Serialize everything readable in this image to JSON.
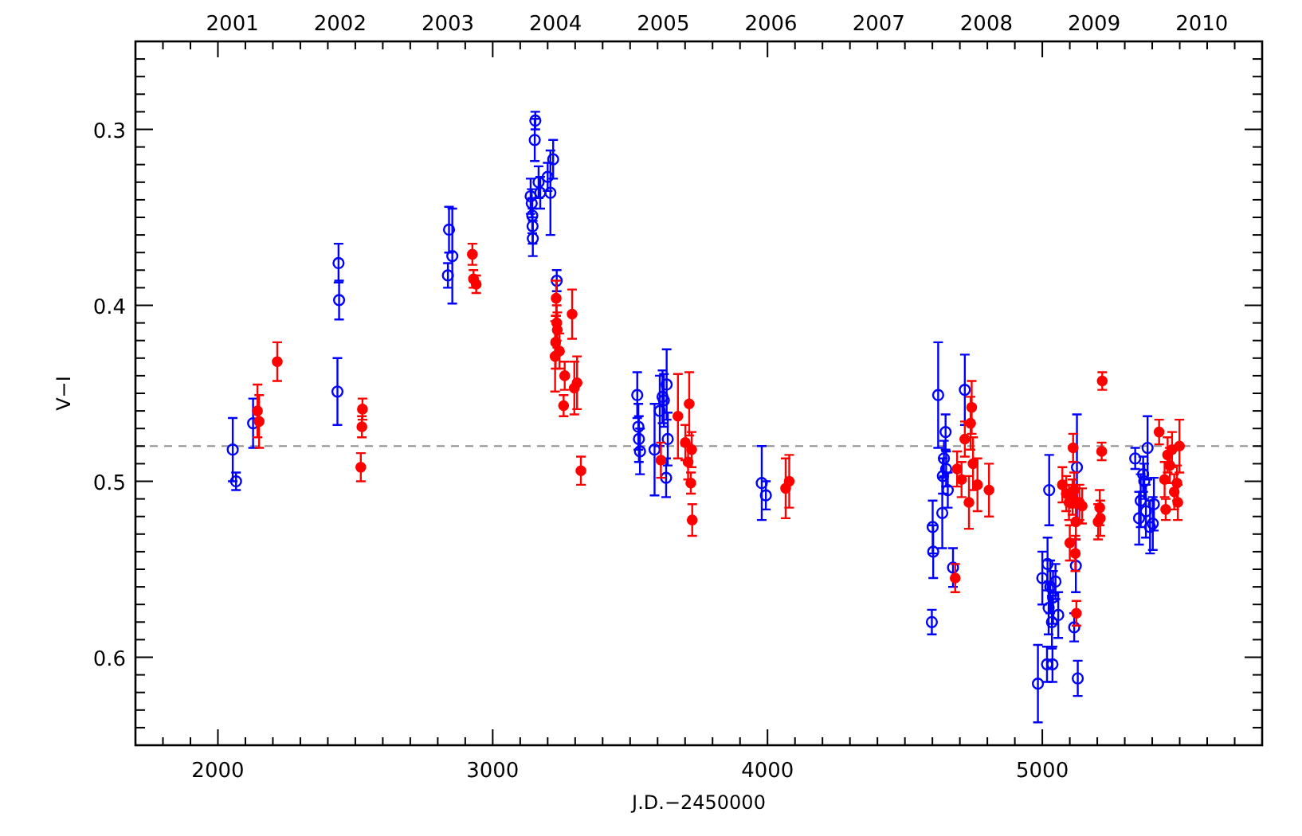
{
  "chart_data": {
    "type": "scatter",
    "xlabel": "J.D.−2450000",
    "ylabel": "V−I",
    "xlim": [
      1700,
      5800
    ],
    "ylim": [
      0.65,
      0.25
    ],
    "xticks": [
      {
        "value": 1700,
        "label": null
      },
      {
        "value": 1800,
        "label": null
      },
      {
        "value": 1900,
        "label": null
      },
      2000,
      {
        "value": 2100,
        "label": null
      },
      {
        "value": 2200,
        "label": null
      },
      {
        "value": 2300,
        "label": null
      },
      {
        "value": 2400,
        "label": null
      },
      {
        "value": 2500,
        "label": null
      },
      {
        "value": 2600,
        "label": null
      },
      {
        "value": 2700,
        "label": null
      },
      {
        "value": 2800,
        "label": null
      },
      {
        "value": 2900,
        "label": null
      },
      3000,
      {
        "value": 3100,
        "label": null
      },
      {
        "value": 3200,
        "label": null
      },
      {
        "value": 3300,
        "label": null
      },
      {
        "value": 3400,
        "label": null
      },
      {
        "value": 3500,
        "label": null
      },
      {
        "value": 3600,
        "label": null
      },
      {
        "value": 3700,
        "label": null
      },
      {
        "value": 3800,
        "label": null
      },
      {
        "value": 3900,
        "label": null
      },
      4000,
      {
        "value": 4100,
        "label": null
      },
      {
        "value": 4200,
        "label": null
      },
      {
        "value": 4300,
        "label": null
      },
      {
        "value": 4400,
        "label": null
      },
      {
        "value": 4500,
        "label": null
      },
      {
        "value": 4600,
        "label": null
      },
      {
        "value": 4700,
        "label": null
      },
      {
        "value": 4800,
        "label": null
      },
      {
        "value": 4900,
        "label": null
      },
      5000,
      {
        "value": 5100,
        "label": null
      },
      {
        "value": 5200,
        "label": null
      },
      {
        "value": 5300,
        "label": null
      },
      {
        "value": 5400,
        "label": null
      },
      {
        "value": 5500,
        "label": null
      },
      {
        "value": 5600,
        "label": null
      },
      {
        "value": 5700,
        "label": null
      }
    ],
    "yticks": [
      {
        "value": 0.26,
        "label": null
      },
      {
        "value": 0.27,
        "label": null
      },
      {
        "value": 0.28,
        "label": null
      },
      {
        "value": 0.29,
        "label": null
      },
      0.3,
      {
        "value": 0.31,
        "label": null
      },
      {
        "value": 0.32,
        "label": null
      },
      {
        "value": 0.33,
        "label": null
      },
      {
        "value": 0.34,
        "label": null
      },
      {
        "value": 0.35,
        "label": null
      },
      {
        "value": 0.36,
        "label": null
      },
      {
        "value": 0.37,
        "label": null
      },
      {
        "value": 0.38,
        "label": null
      },
      {
        "value": 0.39,
        "label": null
      },
      0.4,
      {
        "value": 0.41,
        "label": null
      },
      {
        "value": 0.42,
        "label": null
      },
      {
        "value": 0.43,
        "label": null
      },
      {
        "value": 0.44,
        "label": null
      },
      {
        "value": 0.45,
        "label": null
      },
      {
        "value": 0.46,
        "label": null
      },
      {
        "value": 0.47,
        "label": null
      },
      {
        "value": 0.48,
        "label": null
      },
      {
        "value": 0.49,
        "label": null
      },
      0.5,
      {
        "value": 0.51,
        "label": null
      },
      {
        "value": 0.52,
        "label": null
      },
      {
        "value": 0.53,
        "label": null
      },
      {
        "value": 0.54,
        "label": null
      },
      {
        "value": 0.55,
        "label": null
      },
      {
        "value": 0.56,
        "label": null
      },
      {
        "value": 0.57,
        "label": null
      },
      {
        "value": 0.58,
        "label": null
      },
      {
        "value": 0.59,
        "label": null
      },
      0.6,
      {
        "value": 0.61,
        "label": null
      },
      {
        "value": 0.62,
        "label": null
      },
      {
        "value": 0.63,
        "label": null
      },
      {
        "value": 0.64,
        "label": null
      }
    ],
    "x2lim": [
      2000.1,
      2010.56
    ],
    "x2ticks": [
      2001,
      2002,
      2003,
      2004,
      2005,
      2006,
      2007,
      2008,
      2009,
      2010
    ],
    "grid": false,
    "ref_lines": [
      {
        "axis": "y",
        "value": 0.48,
        "color": "#909090",
        "line_style": "dashed"
      }
    ],
    "series": [
      {
        "color": "#0000ff",
        "marker": "circle",
        "x": [
          2054,
          2066,
          2128,
          2435,
          2439,
          2441,
          2837,
          2841,
          2853,
          3138,
          3142,
          3144,
          3145,
          3146,
          3153,
          3155,
          3167,
          3173,
          3200,
          3210,
          3220,
          3233,
          3526,
          3530,
          3532,
          3536,
          3589,
          3608,
          3618,
          3623,
          3633,
          3637,
          3631,
          3979,
          3994,
          4598,
          4601,
          4603,
          4621,
          4636,
          4638,
          4642,
          4648,
          4650,
          4656,
          4675,
          4718,
          4984,
          5000,
          5019,
          5017,
          5023,
          5025,
          5029,
          5035,
          5037,
          5039,
          5048,
          5058,
          5116,
          5122,
          5126,
          5129,
          5338,
          5352,
          5358,
          5367,
          5371,
          5377,
          5383,
          5392,
          5402,
          5406
        ],
        "values": [
          0.482,
          0.5,
          0.467,
          0.449,
          0.376,
          0.397,
          0.383,
          0.357,
          0.372,
          0.338,
          0.342,
          0.349,
          0.355,
          0.362,
          0.306,
          0.295,
          0.33,
          0.336,
          0.327,
          0.336,
          0.317,
          0.386,
          0.451,
          0.469,
          0.476,
          0.483,
          0.482,
          0.46,
          0.452,
          0.454,
          0.445,
          0.476,
          0.498,
          0.501,
          0.508,
          0.58,
          0.526,
          0.54,
          0.451,
          0.518,
          0.497,
          0.487,
          0.472,
          0.493,
          0.505,
          0.549,
          0.448,
          0.615,
          0.555,
          0.547,
          0.604,
          0.572,
          0.505,
          0.56,
          0.58,
          0.604,
          0.566,
          0.557,
          0.576,
          0.583,
          0.548,
          0.492,
          0.612,
          0.487,
          0.521,
          0.511,
          0.496,
          0.5,
          0.517,
          0.481,
          0.526,
          0.524,
          0.513
        ],
        "errors": [
          0.018,
          0.005,
          0.014,
          0.019,
          0.011,
          0.011,
          0.007,
          0.013,
          0.027,
          0.01,
          0.008,
          0.01,
          0.01,
          0.01,
          0.012,
          0.005,
          0.009,
          0.009,
          0.008,
          0.024,
          0.011,
          0.006,
          0.013,
          0.013,
          0.013,
          0.013,
          0.026,
          0.02,
          0.015,
          0.015,
          0.02,
          0.015,
          0.011,
          0.021,
          0.008,
          0.007,
          0.015,
          0.015,
          0.03,
          0.02,
          0.01,
          0.01,
          0.01,
          0.01,
          0.01,
          0.011,
          0.02,
          0.022,
          0.015,
          0.015,
          0.01,
          0.015,
          0.02,
          0.015,
          0.015,
          0.01,
          0.015,
          0.01,
          0.013,
          0.008,
          0.015,
          0.03,
          0.01,
          0.006,
          0.015,
          0.015,
          0.01,
          0.01,
          0.015,
          0.018,
          0.015,
          0.015,
          0.015
        ]
      },
      {
        "color": "#ff0000",
        "marker": "circle",
        "x": [
          2144,
          2150,
          2216,
          2520,
          2524,
          2526,
          2926,
          2930,
          2940,
          3227,
          3229,
          3231,
          3233,
          3235,
          3243,
          3258,
          3262,
          3289,
          3297,
          3307,
          3321,
          3612,
          3674,
          3701,
          3711,
          3715,
          3721,
          3724,
          3726,
          4066,
          4079,
          4683,
          4690,
          4706,
          4718,
          4733,
          4739,
          4743,
          4748,
          4764,
          4806,
          5073,
          5087,
          5097,
          5100,
          5110,
          5112,
          5116,
          5120,
          5122,
          5124,
          5135,
          5145,
          5203,
          5209,
          5211,
          5216,
          5218,
          5425,
          5445,
          5449,
          5456,
          5464,
          5472,
          5480,
          5490,
          5493,
          5499
        ],
        "values": [
          0.46,
          0.466,
          0.432,
          0.492,
          0.469,
          0.459,
          0.371,
          0.385,
          0.388,
          0.429,
          0.421,
          0.396,
          0.41,
          0.414,
          0.426,
          0.457,
          0.44,
          0.405,
          0.447,
          0.444,
          0.494,
          0.488,
          0.463,
          0.478,
          0.489,
          0.456,
          0.501,
          0.482,
          0.522,
          0.504,
          0.5,
          0.555,
          0.493,
          0.499,
          0.476,
          0.512,
          0.467,
          0.458,
          0.49,
          0.502,
          0.505,
          0.502,
          0.507,
          0.512,
          0.535,
          0.509,
          0.481,
          0.505,
          0.541,
          0.523,
          0.575,
          0.512,
          0.514,
          0.523,
          0.515,
          0.521,
          0.483,
          0.443,
          0.472,
          0.499,
          0.516,
          0.485,
          0.491,
          0.482,
          0.506,
          0.501,
          0.512,
          0.48
        ],
        "errors": [
          0.015,
          0.015,
          0.011,
          0.008,
          0.006,
          0.006,
          0.006,
          0.005,
          0.005,
          0.02,
          0.015,
          0.01,
          0.01,
          0.01,
          0.01,
          0.006,
          0.008,
          0.014,
          0.015,
          0.015,
          0.008,
          0.01,
          0.024,
          0.01,
          0.01,
          0.018,
          0.006,
          0.01,
          0.009,
          0.017,
          0.015,
          0.008,
          0.01,
          0.01,
          0.01,
          0.015,
          0.015,
          0.015,
          0.015,
          0.015,
          0.015,
          0.01,
          0.01,
          0.01,
          0.01,
          0.01,
          0.008,
          0.01,
          0.01,
          0.01,
          0.007,
          0.01,
          0.01,
          0.01,
          0.01,
          0.01,
          0.005,
          0.005,
          0.007,
          0.01,
          0.006,
          0.01,
          0.01,
          0.01,
          0.01,
          0.01,
          0.01,
          0.015
        ]
      }
    ]
  }
}
